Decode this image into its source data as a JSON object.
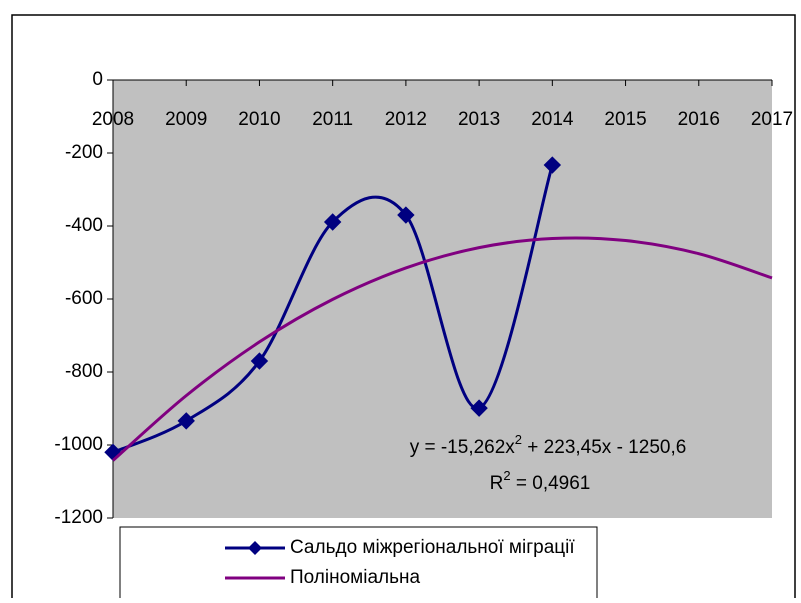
{
  "chart_data": {
    "type": "line",
    "x": [
      2008,
      2009,
      2010,
      2011,
      2012,
      2013,
      2014,
      2015,
      2016,
      2017
    ],
    "series": [
      {
        "name": "Сальдо міжрегіональної міграції",
        "color": "#000080",
        "marker": "diamond",
        "smooth": true,
        "values": [
          -1020,
          -934,
          -770,
          -389,
          -370,
          -899,
          -233,
          null,
          null,
          null
        ]
      },
      {
        "name": "Поліноміальна",
        "color": "#800080",
        "marker": "none",
        "smooth": true,
        "values": [
          -1042.4,
          -864.7,
          -717.6,
          -601.0,
          -514.9,
          -459.3,
          -434.3,
          -439.8,
          -475.8,
          -542.3
        ]
      }
    ],
    "xlim": [
      2008,
      2017
    ],
    "xticks": [
      2008,
      2009,
      2010,
      2011,
      2012,
      2013,
      2014,
      2015,
      2016,
      2017
    ],
    "ylim": [
      -1200,
      0
    ],
    "yticks": [
      0,
      -200,
      -400,
      -600,
      -800,
      -1000,
      -1200
    ],
    "grid": false,
    "plot_background": "#c0c0c0",
    "annotations": {
      "equation": [
        "y = -15,262x",
        "2",
        " + 223,45x - 1250,6"
      ],
      "r_squared": [
        "R",
        "2",
        " = 0,4961"
      ]
    }
  }
}
